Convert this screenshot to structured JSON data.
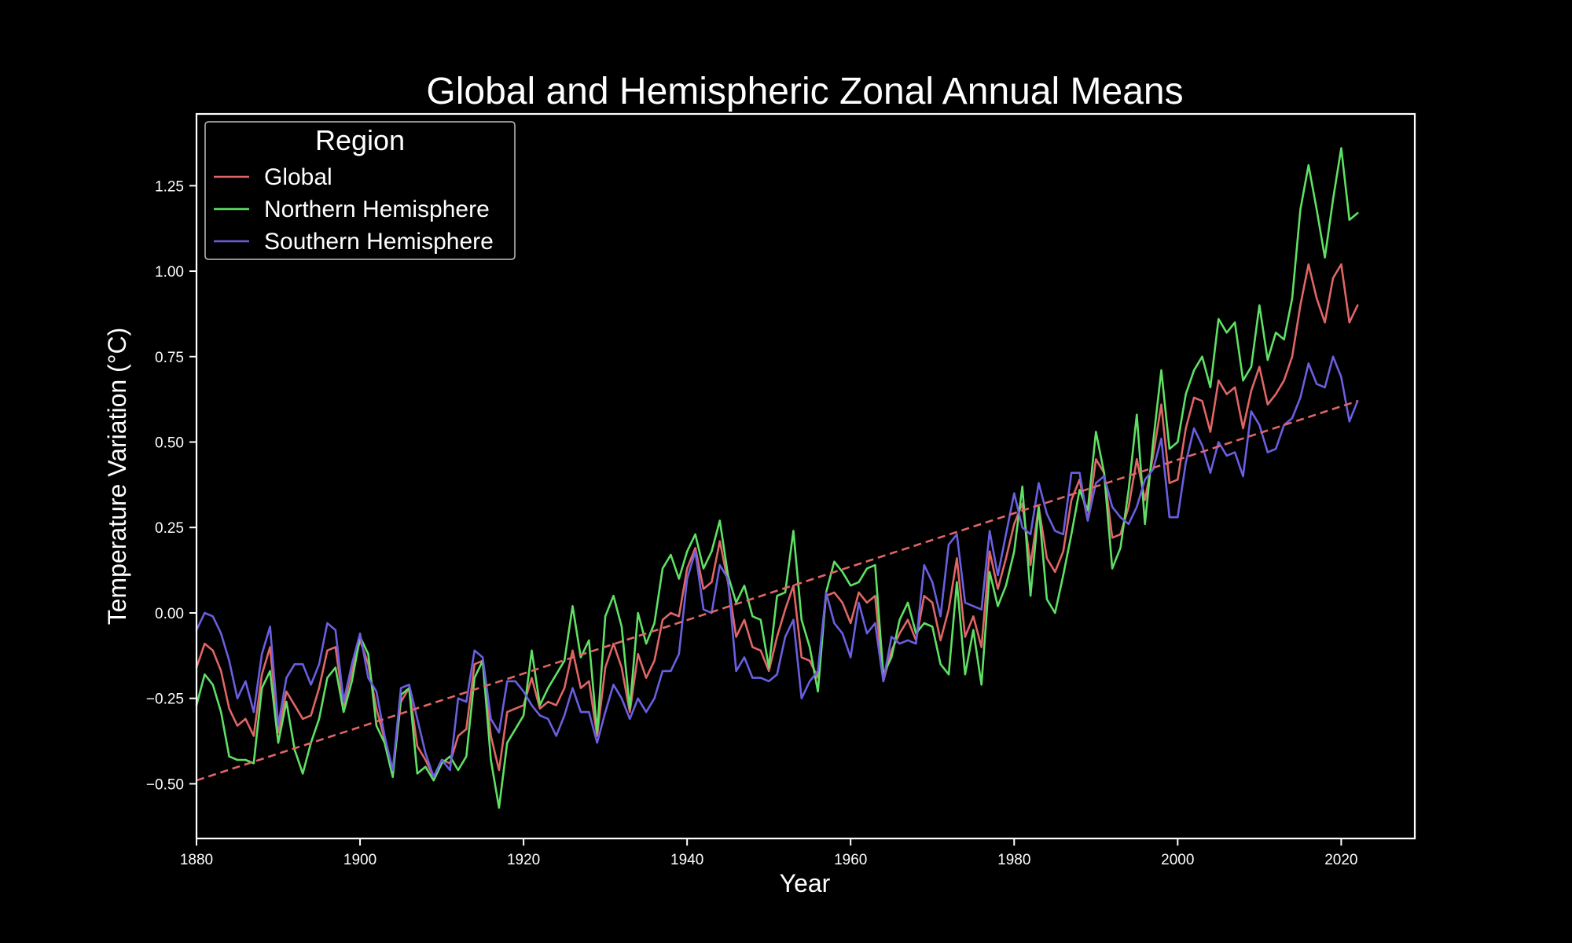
{
  "chart_data": {
    "type": "line",
    "title": "Global and Hemispheric Zonal Annual Means",
    "xlabel": "Year",
    "ylabel": "Temperature Variation (°C)",
    "xlim": [
      1880,
      2029
    ],
    "ylim": [
      -0.66,
      1.46
    ],
    "xticks": [
      1880,
      1900,
      1920,
      1940,
      1960,
      1980,
      2000,
      2020
    ],
    "xtick_labels": [
      "1880",
      "1900",
      "1920",
      "1940",
      "1960",
      "1980",
      "2000",
      "2020"
    ],
    "yticks": [
      -0.5,
      -0.25,
      0,
      0.25,
      0.5,
      0.75,
      1.0,
      1.25
    ],
    "ytick_labels": [
      "−0.50",
      "−0.25",
      "0.00",
      "0.25",
      "0.50",
      "0.75",
      "1.00",
      "1.25"
    ],
    "grid": false,
    "legend": {
      "title": "Region",
      "position": "top-left"
    },
    "x_start": 1880,
    "series": [
      {
        "name": "Global",
        "color": "#e06666",
        "values": [
          -0.16,
          -0.09,
          -0.11,
          -0.17,
          -0.28,
          -0.33,
          -0.31,
          -0.36,
          -0.18,
          -0.1,
          -0.35,
          -0.23,
          -0.27,
          -0.31,
          -0.3,
          -0.22,
          -0.11,
          -0.1,
          -0.27,
          -0.17,
          -0.08,
          -0.15,
          -0.28,
          -0.37,
          -0.47,
          -0.26,
          -0.22,
          -0.39,
          -0.43,
          -0.48,
          -0.43,
          -0.44,
          -0.36,
          -0.34,
          -0.15,
          -0.14,
          -0.36,
          -0.46,
          -0.29,
          -0.28,
          -0.27,
          -0.19,
          -0.28,
          -0.26,
          -0.27,
          -0.22,
          -0.11,
          -0.22,
          -0.2,
          -0.36,
          -0.16,
          -0.09,
          -0.16,
          -0.29,
          -0.12,
          -0.19,
          -0.14,
          -0.02,
          0.0,
          -0.01,
          0.13,
          0.19,
          0.07,
          0.09,
          0.21,
          0.09,
          -0.07,
          -0.02,
          -0.1,
          -0.11,
          -0.17,
          -0.07,
          0.01,
          0.08,
          -0.13,
          -0.14,
          -0.19,
          0.05,
          0.06,
          0.03,
          -0.03,
          0.06,
          0.03,
          0.05,
          -0.2,
          -0.11,
          -0.06,
          -0.02,
          -0.08,
          0.05,
          0.03,
          -0.08,
          0.01,
          0.16,
          -0.07,
          -0.01,
          -0.1,
          0.18,
          0.07,
          0.16,
          0.26,
          0.32,
          0.14,
          0.31,
          0.16,
          0.12,
          0.18,
          0.33,
          0.39,
          0.27,
          0.45,
          0.41,
          0.22,
          0.23,
          0.31,
          0.45,
          0.33,
          0.46,
          0.61,
          0.38,
          0.39,
          0.54,
          0.63,
          0.62,
          0.53,
          0.68,
          0.64,
          0.66,
          0.54,
          0.65,
          0.72,
          0.61,
          0.64,
          0.68,
          0.75,
          0.9,
          1.02,
          0.92,
          0.85,
          0.98,
          1.02,
          0.85,
          0.9
        ]
      },
      {
        "name": "Northern Hemisphere",
        "color": "#5fe065",
        "values": [
          -0.27,
          -0.18,
          -0.21,
          -0.29,
          -0.42,
          -0.43,
          -0.43,
          -0.44,
          -0.22,
          -0.17,
          -0.38,
          -0.26,
          -0.4,
          -0.47,
          -0.38,
          -0.31,
          -0.19,
          -0.16,
          -0.29,
          -0.2,
          -0.07,
          -0.12,
          -0.33,
          -0.38,
          -0.48,
          -0.24,
          -0.22,
          -0.47,
          -0.45,
          -0.49,
          -0.44,
          -0.42,
          -0.46,
          -0.42,
          -0.19,
          -0.14,
          -0.43,
          -0.57,
          -0.38,
          -0.34,
          -0.3,
          -0.11,
          -0.27,
          -0.22,
          -0.18,
          -0.14,
          0.02,
          -0.13,
          -0.08,
          -0.35,
          -0.01,
          0.05,
          -0.04,
          -0.28,
          0.0,
          -0.09,
          -0.03,
          0.13,
          0.17,
          0.1,
          0.18,
          0.23,
          0.13,
          0.18,
          0.27,
          0.11,
          0.03,
          0.08,
          -0.01,
          -0.02,
          -0.16,
          0.05,
          0.06,
          0.24,
          -0.02,
          -0.1,
          -0.23,
          0.06,
          0.15,
          0.12,
          0.08,
          0.09,
          0.13,
          0.14,
          -0.18,
          -0.13,
          -0.02,
          0.03,
          -0.06,
          -0.03,
          -0.04,
          -0.15,
          -0.18,
          0.09,
          -0.18,
          -0.05,
          -0.21,
          0.12,
          0.02,
          0.08,
          0.18,
          0.37,
          0.05,
          0.31,
          0.04,
          0.0,
          0.11,
          0.23,
          0.36,
          0.3,
          0.53,
          0.41,
          0.13,
          0.19,
          0.36,
          0.58,
          0.26,
          0.5,
          0.71,
          0.48,
          0.5,
          0.64,
          0.71,
          0.75,
          0.66,
          0.86,
          0.82,
          0.85,
          0.68,
          0.72,
          0.9,
          0.74,
          0.82,
          0.8,
          0.92,
          1.18,
          1.31,
          1.18,
          1.04,
          1.21,
          1.36,
          1.15,
          1.17
        ]
      },
      {
        "name": "Southern Hemisphere",
        "color": "#6a5fe0",
        "values": [
          -0.05,
          0.0,
          -0.01,
          -0.06,
          -0.14,
          -0.25,
          -0.2,
          -0.29,
          -0.12,
          -0.04,
          -0.33,
          -0.19,
          -0.15,
          -0.15,
          -0.21,
          -0.15,
          -0.03,
          -0.05,
          -0.26,
          -0.15,
          -0.06,
          -0.19,
          -0.23,
          -0.36,
          -0.46,
          -0.22,
          -0.21,
          -0.31,
          -0.41,
          -0.48,
          -0.43,
          -0.46,
          -0.25,
          -0.26,
          -0.11,
          -0.13,
          -0.31,
          -0.35,
          -0.2,
          -0.2,
          -0.23,
          -0.27,
          -0.3,
          -0.31,
          -0.36,
          -0.3,
          -0.22,
          -0.29,
          -0.29,
          -0.38,
          -0.29,
          -0.21,
          -0.25,
          -0.31,
          -0.25,
          -0.29,
          -0.25,
          -0.17,
          -0.17,
          -0.12,
          0.1,
          0.18,
          0.01,
          0.0,
          0.14,
          0.1,
          -0.17,
          -0.13,
          -0.19,
          -0.19,
          -0.2,
          -0.18,
          -0.07,
          -0.02,
          -0.25,
          -0.2,
          -0.17,
          0.06,
          -0.03,
          -0.06,
          -0.13,
          0.03,
          -0.06,
          -0.03,
          -0.2,
          -0.07,
          -0.09,
          -0.08,
          -0.09,
          0.14,
          0.09,
          -0.01,
          0.2,
          0.23,
          0.03,
          0.02,
          0.01,
          0.24,
          0.11,
          0.23,
          0.35,
          0.25,
          0.23,
          0.38,
          0.29,
          0.24,
          0.23,
          0.41,
          0.41,
          0.27,
          0.38,
          0.4,
          0.31,
          0.28,
          0.26,
          0.31,
          0.39,
          0.42,
          0.51,
          0.28,
          0.28,
          0.44,
          0.54,
          0.49,
          0.41,
          0.5,
          0.46,
          0.47,
          0.4,
          0.59,
          0.55,
          0.47,
          0.48,
          0.55,
          0.57,
          0.63,
          0.73,
          0.67,
          0.66,
          0.75,
          0.69,
          0.56,
          0.62
        ]
      }
    ],
    "trend": {
      "color": "#e06666",
      "style": "dashed",
      "x": [
        1880,
        2022
      ],
      "y": [
        -0.49,
        0.62
      ]
    }
  }
}
